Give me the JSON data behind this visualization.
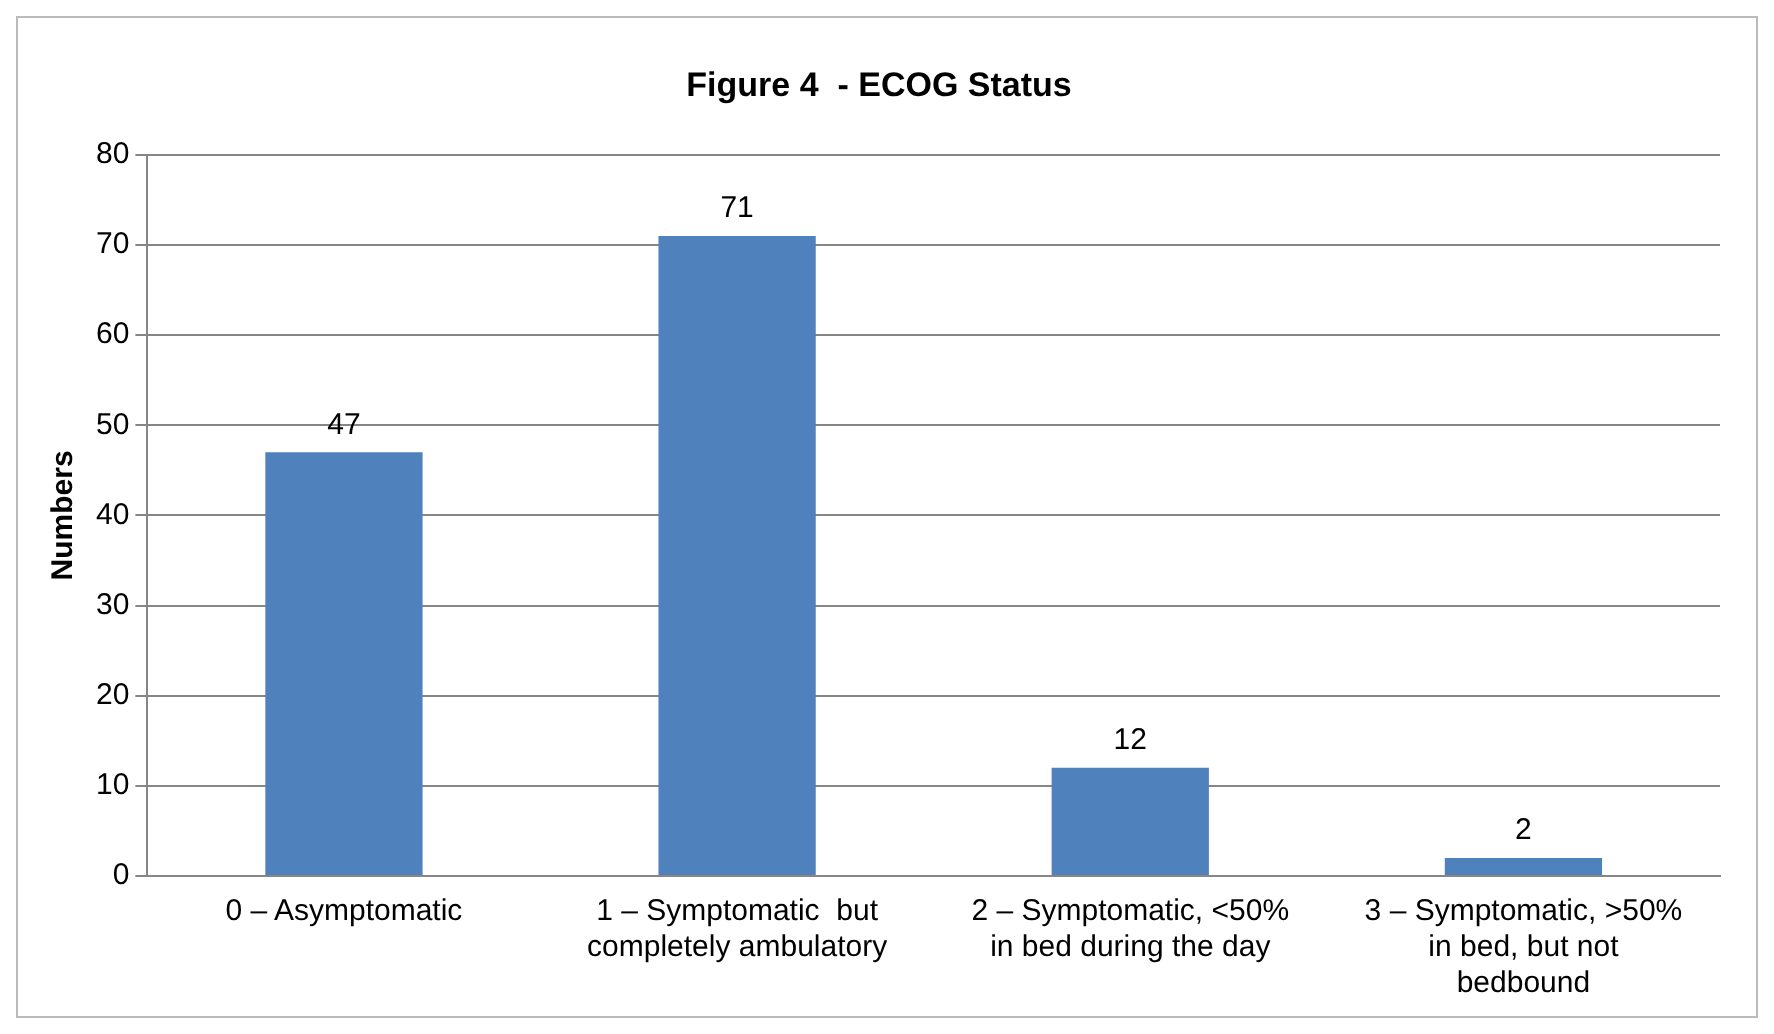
{
  "chart_data": {
    "type": "bar",
    "title": "Figure 4  - ECOG Status",
    "ylabel": "Numbers",
    "categories": [
      "0 – Asymptomatic",
      "1 – Symptomatic  but completely ambulatory",
      "2 – Symptomatic, <50% in bed during the day",
      "3 – Symptomatic, >50% in bed, but not bedbound"
    ],
    "values": [
      47,
      71,
      12,
      2
    ],
    "color": "#4f81bd",
    "ylim": [
      0,
      80
    ],
    "yticks": [
      0,
      10,
      20,
      30,
      40,
      50,
      60,
      70,
      80
    ],
    "grid": "y",
    "data_labels": true,
    "legend": false
  }
}
